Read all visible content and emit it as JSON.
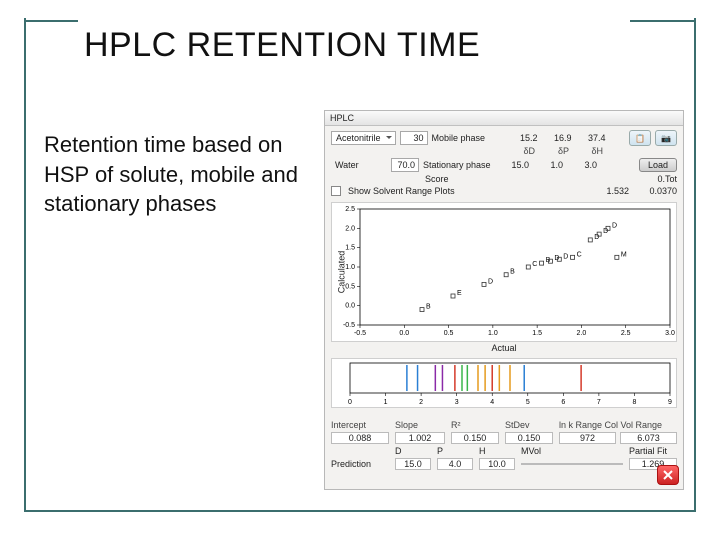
{
  "slide": {
    "title": "HPLC RETENTION TIME",
    "body": "Retention time based on HSP of solute, mobile and stationary phases",
    "frame_color": "#3b6e6e",
    "title_fontsize": 34,
    "body_fontsize": 22
  },
  "app": {
    "window_title": "HPLC",
    "background": "#f3f2f0",
    "border_color": "#b8b8b8",
    "solvent_a": {
      "name": "Acetonitrile",
      "pct": "30"
    },
    "solvent_b": {
      "name": "Water",
      "pct": "70.0"
    },
    "mobile_label": "Mobile phase",
    "stationary_label": "Stationary phase",
    "cols": [
      "δD",
      "δP",
      "δH"
    ],
    "mobile_vals": [
      "15.2",
      "16.9",
      "37.4"
    ],
    "stationary_vals": [
      "15.0",
      "1.0",
      "3.0"
    ],
    "score_label": "Score",
    "score_val": "0.Tot",
    "fit_vals": [
      "1.532",
      "0.0370"
    ],
    "copy_icon": "copy-icon",
    "camera_icon": "camera-icon",
    "load_btn": "Load",
    "show_checkbox": "Show Solvent Range Plots",
    "show_checked": false
  },
  "scatter": {
    "type": "scatter",
    "bg": "#ffffff",
    "xlabel": "Actual",
    "ylabel": "Calculated",
    "xlim": [
      -0.5,
      3.0
    ],
    "xtick_step": 0.5,
    "ylim": [
      -0.5,
      2.5
    ],
    "ytick_step": 0.5,
    "points": [
      {
        "x": 0.2,
        "y": -0.1,
        "l": "B"
      },
      {
        "x": 0.55,
        "y": 0.25,
        "l": "E"
      },
      {
        "x": 0.9,
        "y": 0.55,
        "l": "D"
      },
      {
        "x": 1.15,
        "y": 0.8,
        "l": "B"
      },
      {
        "x": 1.4,
        "y": 1.0,
        "l": "C"
      },
      {
        "x": 1.55,
        "y": 1.1,
        "l": "B"
      },
      {
        "x": 1.65,
        "y": 1.15,
        "l": "D"
      },
      {
        "x": 1.75,
        "y": 1.2,
        "l": "D"
      },
      {
        "x": 1.9,
        "y": 1.25,
        "l": "C"
      },
      {
        "x": 2.4,
        "y": 1.25,
        "l": "M"
      },
      {
        "x": 2.1,
        "y": 1.7,
        "l": "D"
      },
      {
        "x": 2.2,
        "y": 1.85,
        "l": "D"
      },
      {
        "x": 2.3,
        "y": 2.0,
        "l": "D"
      }
    ],
    "marker": "square",
    "marker_size": 4,
    "marker_color": "#333333"
  },
  "strip": {
    "type": "strip",
    "bg": "#ffffff",
    "xlim": [
      0,
      9
    ],
    "xtick_step": 1,
    "lines": [
      {
        "x": 1.6,
        "c": "#2a7fd4"
      },
      {
        "x": 1.9,
        "c": "#2a7fd4"
      },
      {
        "x": 2.4,
        "c": "#8a2aa8"
      },
      {
        "x": 2.6,
        "c": "#8a2aa8"
      },
      {
        "x": 2.95,
        "c": "#d43a2a"
      },
      {
        "x": 3.15,
        "c": "#3ab54a"
      },
      {
        "x": 3.3,
        "c": "#3ab54a"
      },
      {
        "x": 3.6,
        "c": "#e59b1e"
      },
      {
        "x": 3.8,
        "c": "#e59b1e"
      },
      {
        "x": 4.0,
        "c": "#d43a2a"
      },
      {
        "x": 4.2,
        "c": "#e59b1e"
      },
      {
        "x": 4.5,
        "c": "#e59b1e"
      },
      {
        "x": 4.9,
        "c": "#2a7fd4"
      },
      {
        "x": 6.5,
        "c": "#d43a2a"
      }
    ],
    "line_width": 1.5
  },
  "stats": {
    "headers": [
      "Intercept",
      "Slope",
      "R²",
      "StDev",
      "ln k Range Col Vol Range"
    ],
    "row1": [
      "0.088",
      "1.002",
      "0.150",
      "0.150",
      "972",
      "6.073"
    ],
    "headers2": [
      "",
      "D",
      "P",
      "H",
      "MVol",
      "Partial Fit"
    ],
    "row2_label": "Prediction",
    "row2": [
      "15.0",
      "4.0",
      "10.0",
      "",
      "1.269"
    ]
  },
  "close": "close-button"
}
